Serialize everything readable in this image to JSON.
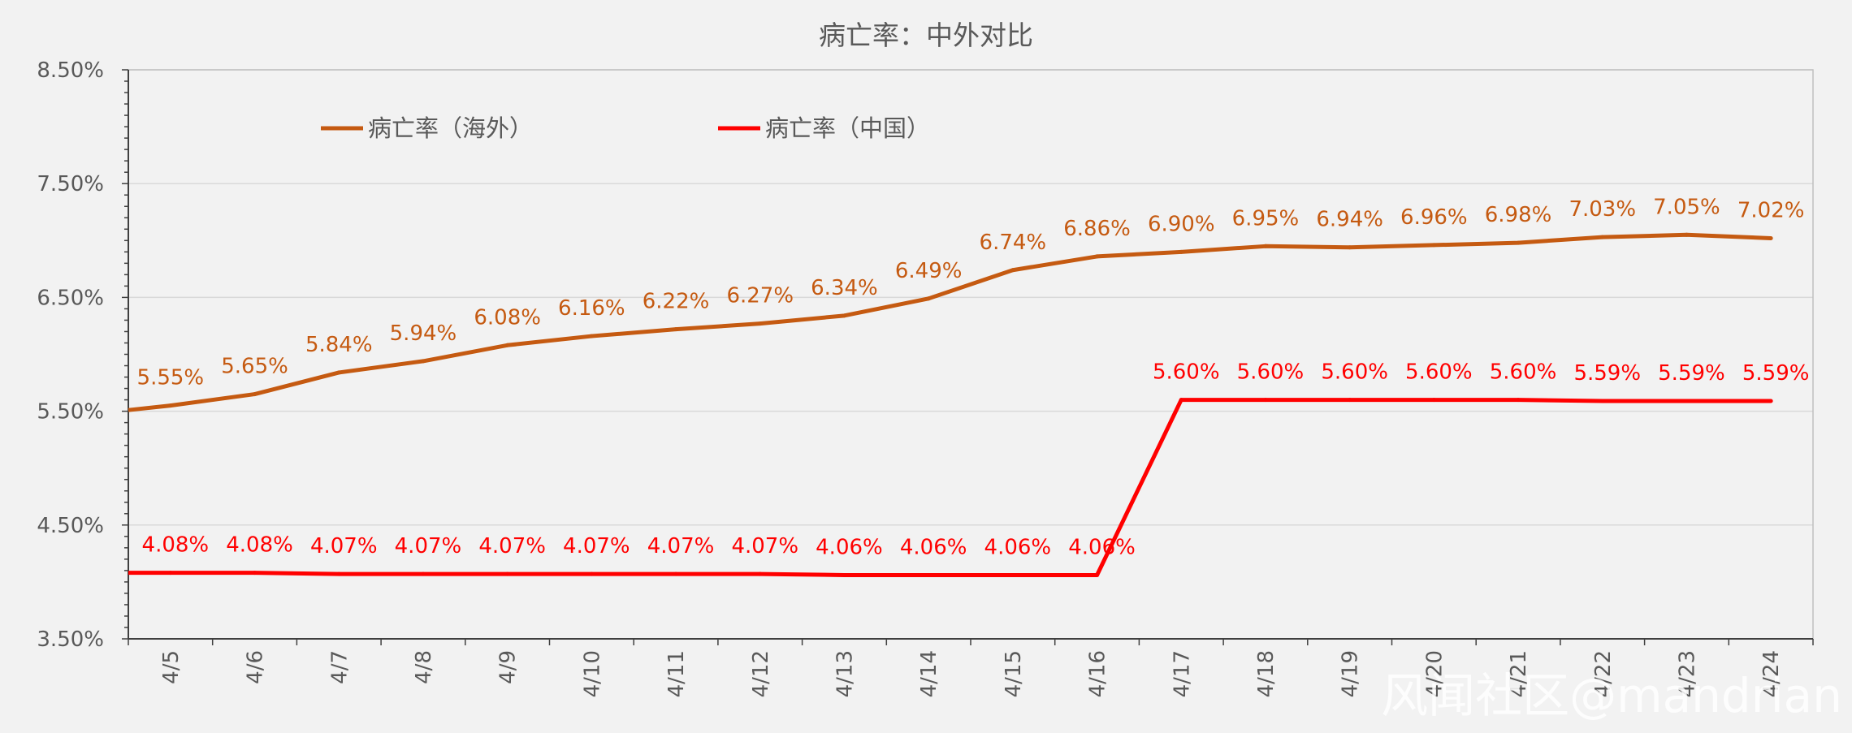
{
  "chart_data": {
    "type": "line",
    "title": "病亡率：中外对比",
    "categories": [
      "4/5",
      "4/6",
      "4/7",
      "4/8",
      "4/9",
      "4/10",
      "4/11",
      "4/12",
      "4/13",
      "4/14",
      "4/15",
      "4/16",
      "4/17",
      "4/18",
      "4/19",
      "4/20",
      "4/21",
      "4/22",
      "4/23",
      "4/24"
    ],
    "ylim": [
      3.5,
      8.5
    ],
    "yticks": [
      "3.50%",
      "4.50%",
      "5.50%",
      "6.50%",
      "7.50%",
      "8.50%"
    ],
    "grid": true,
    "legend_position": "top-left",
    "series": [
      {
        "name": "病亡率（海外）",
        "color": "#c55a11",
        "values": [
          5.55,
          5.65,
          5.84,
          5.94,
          6.08,
          6.16,
          6.22,
          6.27,
          6.34,
          6.49,
          6.74,
          6.86,
          6.9,
          6.95,
          6.94,
          6.96,
          6.98,
          7.03,
          7.05,
          7.02
        ],
        "labels": [
          "5.55%",
          "5.65%",
          "5.84%",
          "5.94%",
          "6.08%",
          "6.16%",
          "6.22%",
          "6.27%",
          "6.34%",
          "6.49%",
          "6.74%",
          "6.86%",
          "6.90%",
          "6.95%",
          "6.94%",
          "6.96%",
          "6.98%",
          "7.03%",
          "7.05%",
          "7.02%"
        ]
      },
      {
        "name": "病亡率（中国）",
        "color": "#ff0000",
        "values": [
          4.08,
          4.08,
          4.07,
          4.07,
          4.07,
          4.07,
          4.07,
          4.07,
          4.06,
          4.06,
          4.06,
          4.06,
          5.6,
          5.6,
          5.6,
          5.6,
          5.6,
          5.59,
          5.59,
          5.59
        ],
        "labels": [
          "4.08%",
          "4.08%",
          "4.07%",
          "4.07%",
          "4.07%",
          "4.07%",
          "4.07%",
          "4.07%",
          "4.06%",
          "4.06%",
          "4.06%",
          "4.06%",
          "5.60%",
          "5.60%",
          "5.60%",
          "5.60%",
          "5.60%",
          "5.59%",
          "5.59%",
          "5.59%"
        ]
      }
    ]
  },
  "watermark": "风闻社区@mandrian"
}
